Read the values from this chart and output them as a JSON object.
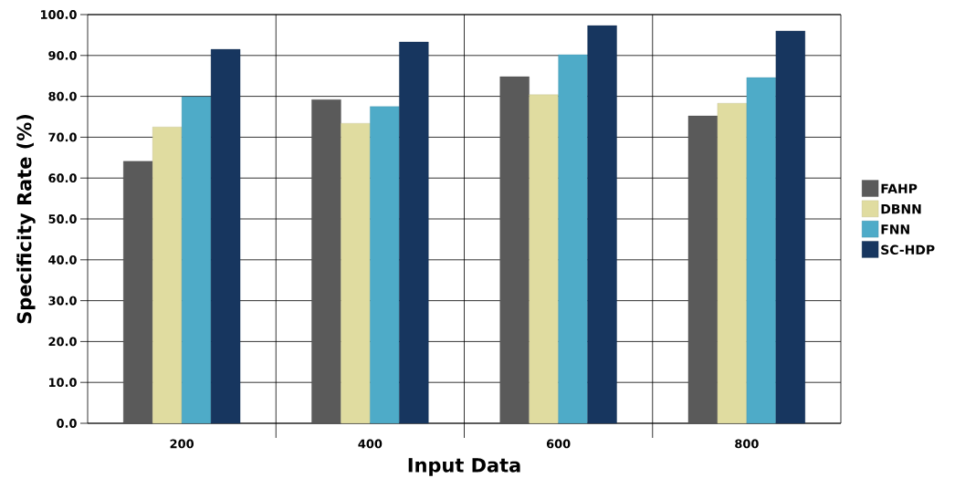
{
  "chart_data": {
    "type": "bar",
    "xlabel": "Input Data",
    "ylabel": "Specificity Rate (%)",
    "categories": [
      "200",
      "400",
      "600",
      "800"
    ],
    "series": [
      {
        "name": "FAHP",
        "color": "#5a5a5a",
        "values": [
          64.1,
          79.2,
          84.8,
          75.2
        ]
      },
      {
        "name": "DBNN",
        "color": "#e0dca0",
        "values": [
          72.5,
          73.4,
          80.4,
          78.3
        ]
      },
      {
        "name": "FNN",
        "color": "#4eabc8",
        "values": [
          79.9,
          77.5,
          90.2,
          84.6
        ]
      },
      {
        "name": "SC-HDP",
        "color": "#17365f",
        "values": [
          91.5,
          93.3,
          97.3,
          96.0
        ]
      }
    ],
    "ylim": [
      0,
      100
    ],
    "yticks": [
      {
        "value": 0,
        "label": "0.0"
      },
      {
        "value": 10,
        "label": "10.0"
      },
      {
        "value": 20,
        "label": "20.0"
      },
      {
        "value": 30,
        "label": "30.0"
      },
      {
        "value": 40,
        "label": "40.0"
      },
      {
        "value": 50,
        "label": "50.0"
      },
      {
        "value": 60,
        "label": "60.0"
      },
      {
        "value": 70,
        "label": "70.0"
      },
      {
        "value": 80,
        "label": "80.0"
      },
      {
        "value": 90,
        "label": "90.0"
      },
      {
        "value": 100,
        "label": "100.0"
      }
    ],
    "grid": true,
    "legend": "right"
  }
}
